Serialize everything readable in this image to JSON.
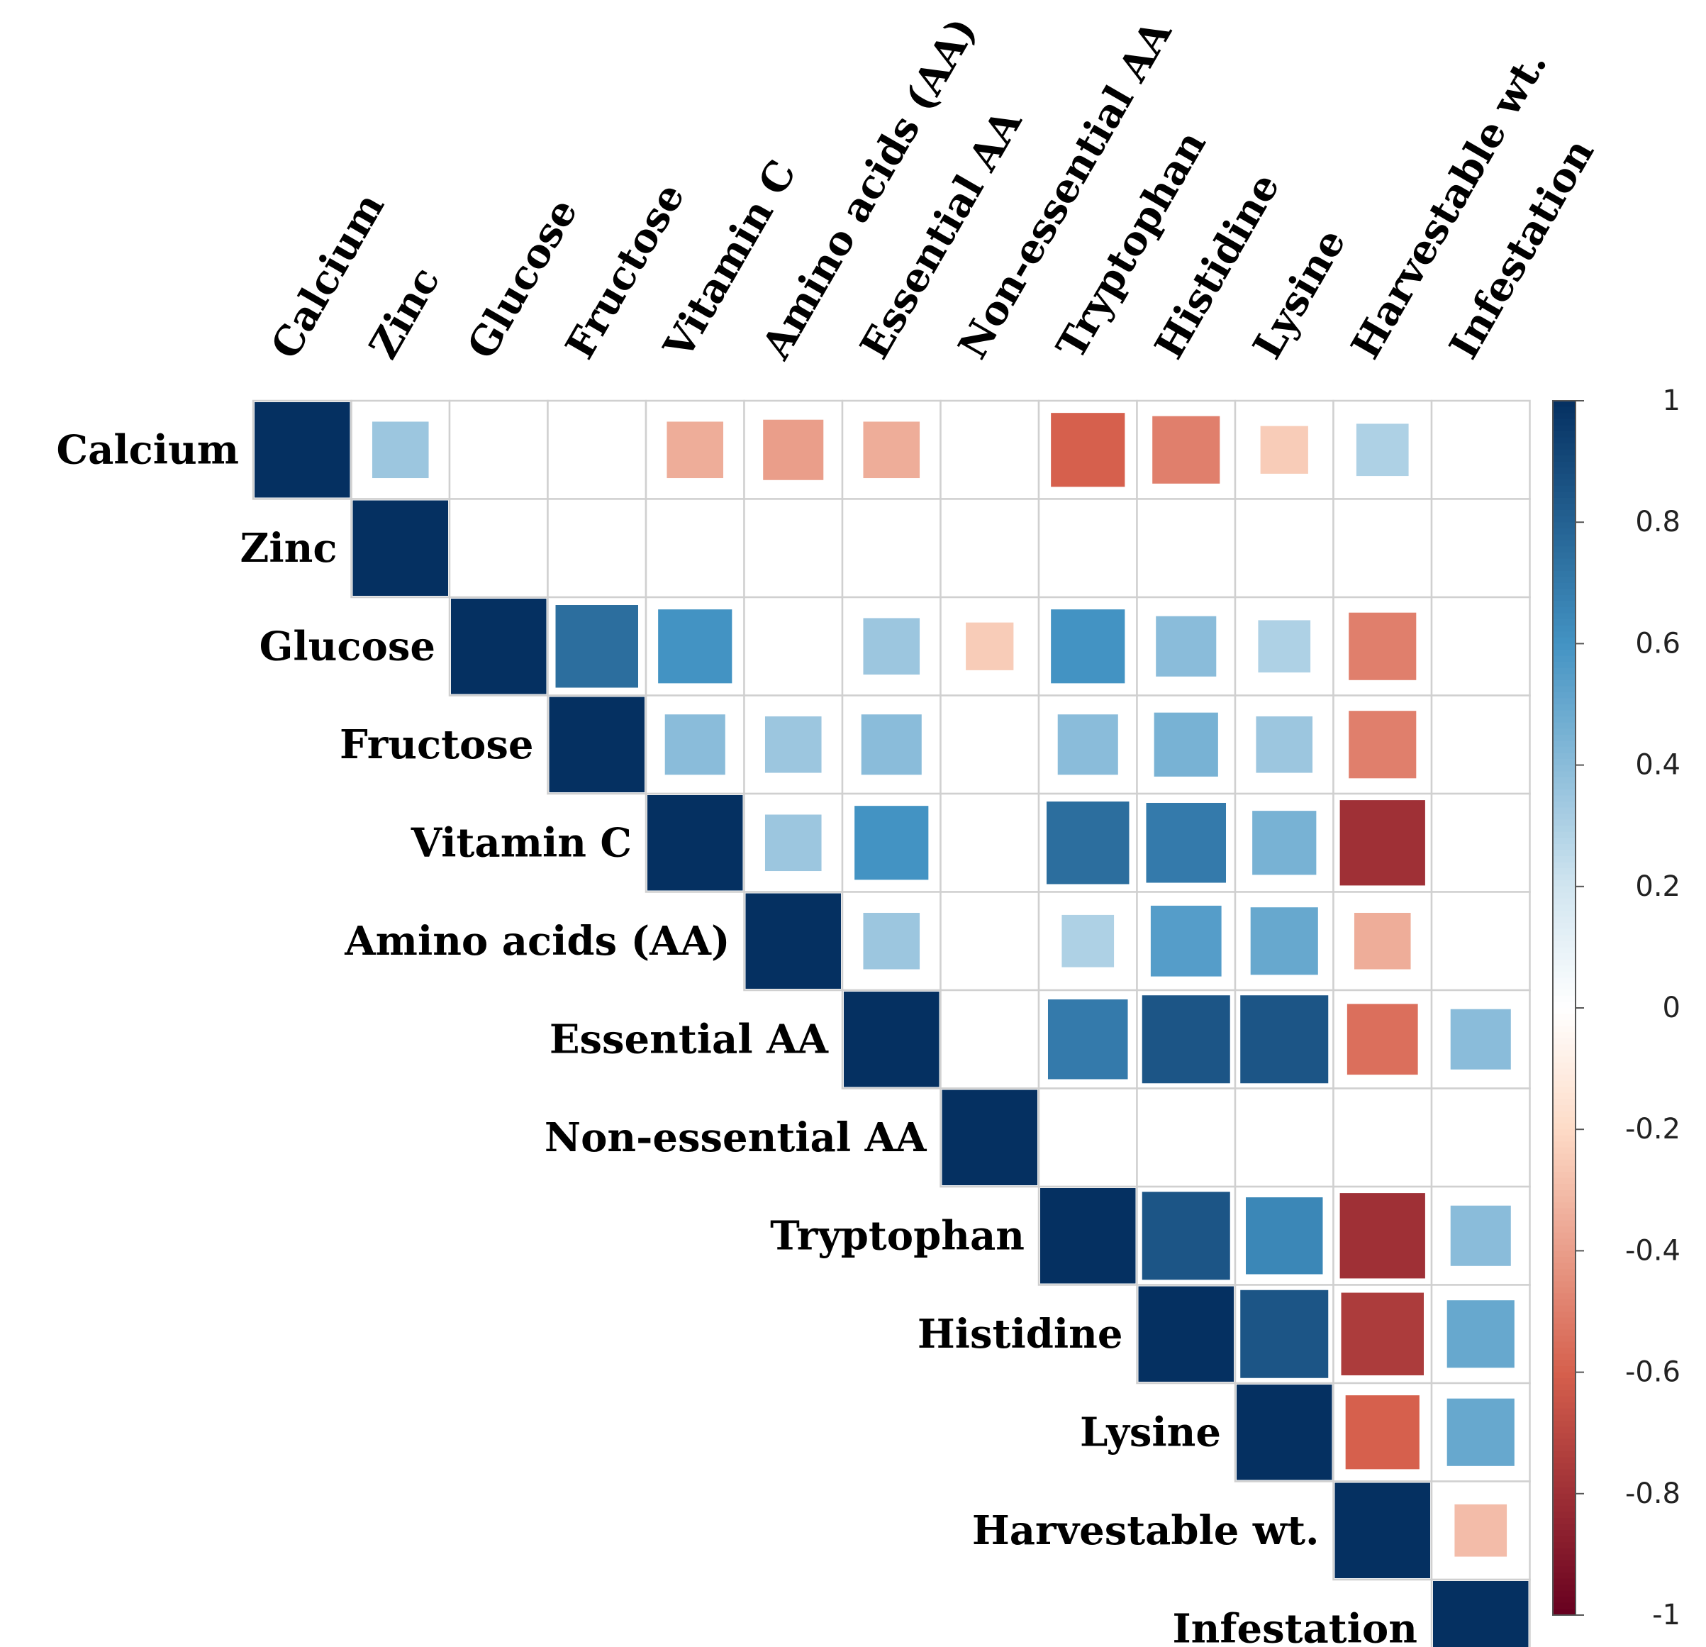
{
  "chart_data": {
    "type": "heatmap",
    "subtype": "correlation-matrix-upper",
    "variables": [
      "Calcium",
      "Zinc",
      "Glucose",
      "Fructose",
      "Vitamin C",
      "Amino acids (AA)",
      "Essential AA",
      "Non-essential AA",
      "Tryptophan",
      "Histidine",
      "Lysine",
      "Harvestable wt.",
      "Infestation"
    ],
    "matrix": [
      [
        1,
        0.35,
        0,
        0,
        -0.35,
        -0.4,
        -0.35,
        0,
        -0.6,
        -0.5,
        -0.25,
        0.3,
        0
      ],
      [
        null,
        1,
        0,
        0,
        0,
        0,
        0,
        0,
        0,
        0,
        0,
        0,
        0
      ],
      [
        null,
        null,
        1,
        0.75,
        0.6,
        0,
        0.35,
        -0.25,
        0.6,
        0.4,
        0.3,
        -0.5,
        0
      ],
      [
        null,
        null,
        null,
        1,
        0.4,
        0.35,
        0.4,
        0,
        0.4,
        0.45,
        0.35,
        -0.5,
        0
      ],
      [
        null,
        null,
        null,
        null,
        1,
        0.35,
        0.6,
        0,
        0.75,
        0.7,
        0.45,
        -0.8,
        0
      ],
      [
        null,
        null,
        null,
        null,
        null,
        1,
        0.35,
        0,
        0.3,
        0.55,
        0.5,
        -0.35,
        0
      ],
      [
        null,
        null,
        null,
        null,
        null,
        null,
        1,
        0,
        0.7,
        0.85,
        0.85,
        -0.55,
        0.4
      ],
      [
        null,
        null,
        null,
        null,
        null,
        null,
        null,
        1,
        0,
        0,
        0,
        0,
        0
      ],
      [
        null,
        null,
        null,
        null,
        null,
        null,
        null,
        null,
        1,
        0.85,
        0.65,
        -0.8,
        0.4
      ],
      [
        null,
        null,
        null,
        null,
        null,
        null,
        null,
        null,
        null,
        1,
        0.85,
        -0.75,
        0.5
      ],
      [
        null,
        null,
        null,
        null,
        null,
        null,
        null,
        null,
        null,
        null,
        1,
        -0.6,
        0.5
      ],
      [
        null,
        null,
        null,
        null,
        null,
        null,
        null,
        null,
        null,
        null,
        null,
        1,
        -0.3
      ],
      [
        null,
        null,
        null,
        null,
        null,
        null,
        null,
        null,
        null,
        null,
        null,
        null,
        1
      ]
    ],
    "colorbar": {
      "range": [
        -1,
        1
      ],
      "ticks": [
        1,
        0.8,
        0.6,
        0.4,
        0.2,
        0,
        -0.2,
        -0.4,
        -0.6,
        -0.8,
        -1
      ],
      "tick_labels": [
        "1",
        "0.8",
        "0.6",
        "0.4",
        "0.2",
        "0",
        "-0.2",
        "-0.4",
        "-0.6",
        "-0.8",
        "-1"
      ]
    },
    "colors": {
      "neg_strong": "#67001f",
      "neg_mid": "#d6604d",
      "neg_light": "#fddbc7",
      "zero": "#ffffff",
      "pos_light": "#d1e5f0",
      "pos_mid": "#4393c3",
      "pos_strong": "#053061",
      "grid": "#d0d0d0"
    }
  }
}
